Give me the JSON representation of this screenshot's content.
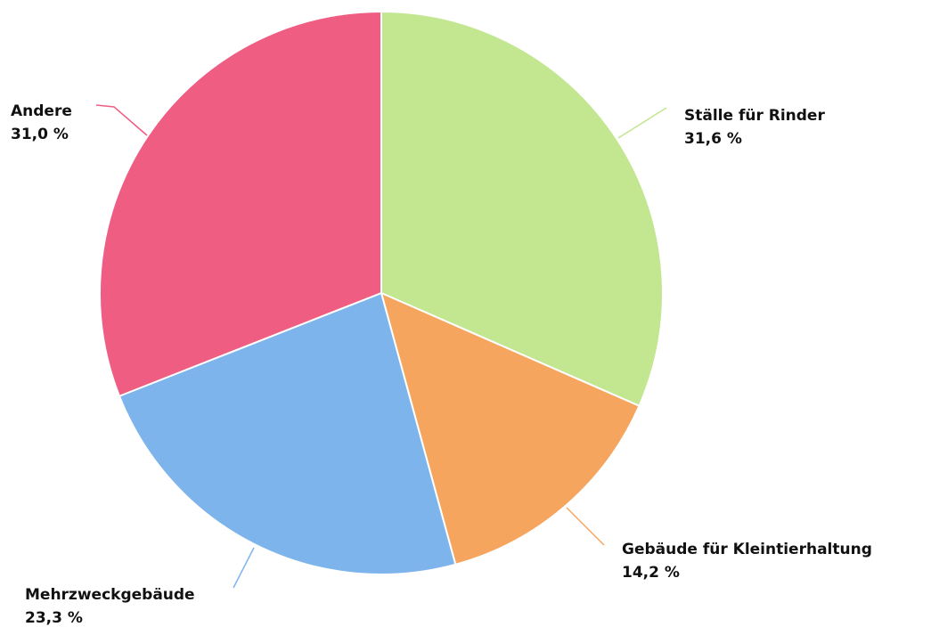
{
  "chart_data": {
    "type": "pie",
    "slices": [
      {
        "name": "Ställe für Rinder",
        "value": 31.6,
        "label": "31,6 %",
        "color": "#c3e690"
      },
      {
        "name": "Gebäude für Kleintierhaltung",
        "value": 14.2,
        "label": "14,2 %",
        "color": "#f6a55e"
      },
      {
        "name": "Mehrzweckgebäude",
        "value": 23.3,
        "label": "23,3 %",
        "color": "#7db4ec"
      },
      {
        "name": "Andere",
        "value": 31.0,
        "label": "31,0 %",
        "color": "#f05d83"
      }
    ]
  }
}
